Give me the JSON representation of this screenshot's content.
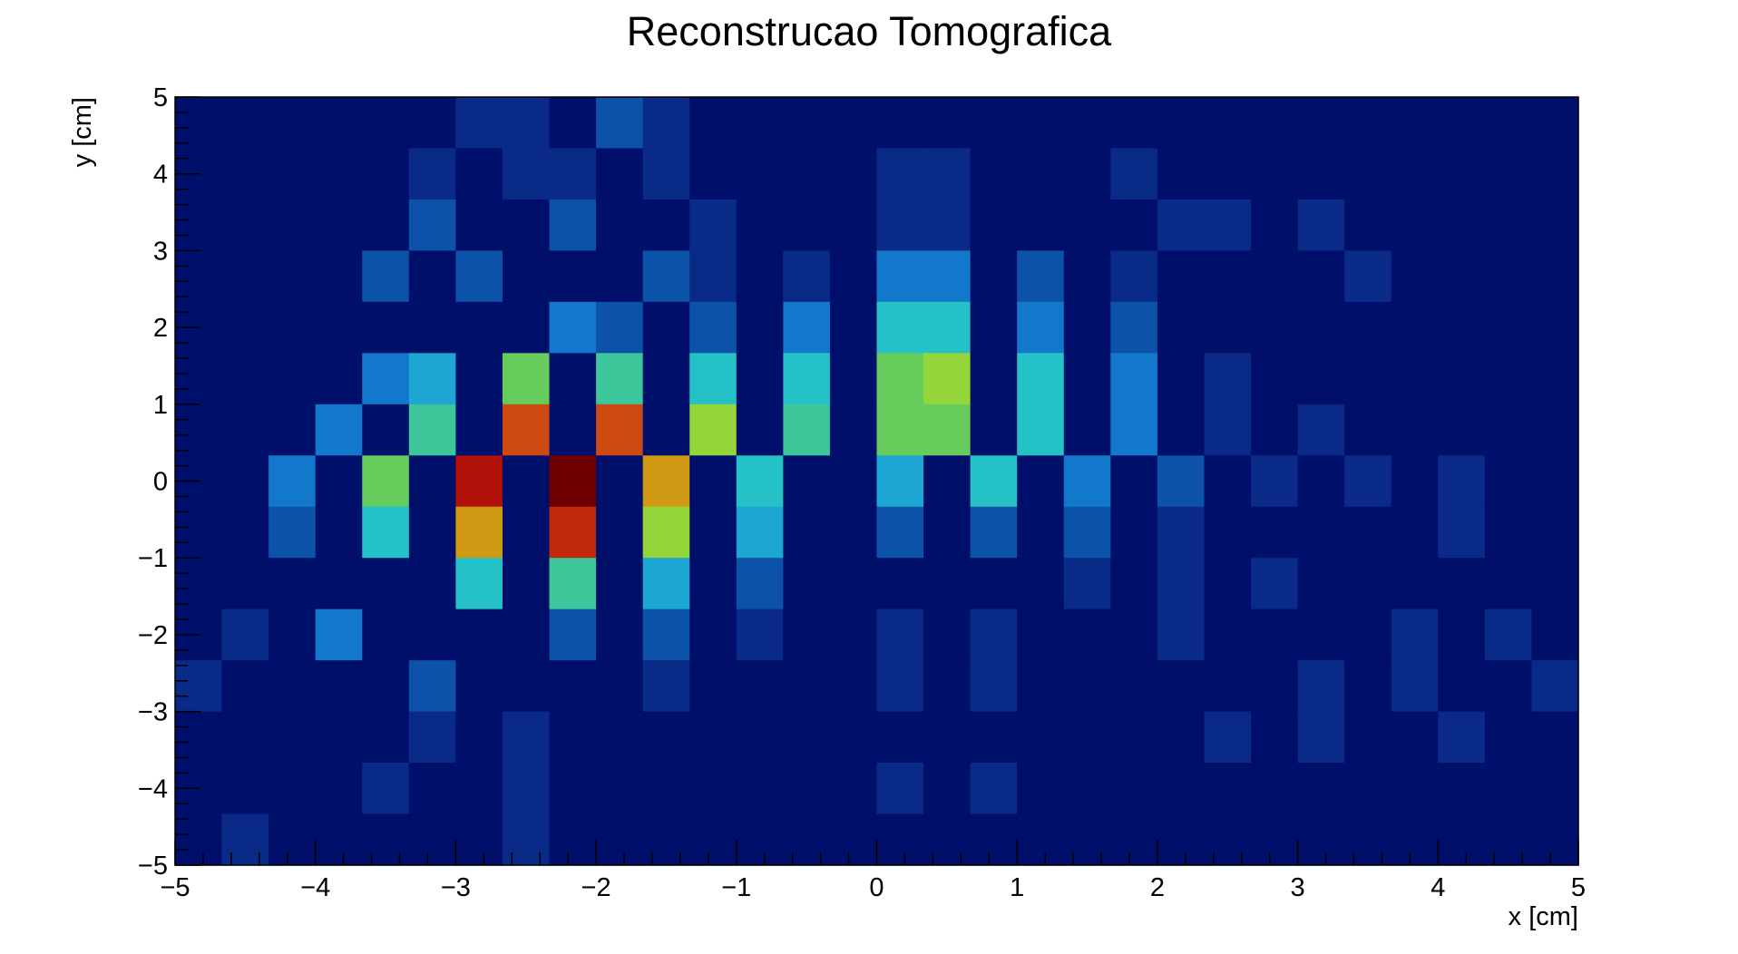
{
  "chart_data": {
    "type": "heatmap",
    "title": "Reconstrucao Tomografica",
    "xlabel": "x [cm]",
    "ylabel": "y [cm]",
    "xlim": [
      -5,
      5
    ],
    "ylim": [
      -5,
      5
    ],
    "x_ticks": [
      "−5",
      "−4",
      "−3",
      "−2",
      "−1",
      "0",
      "1",
      "2",
      "3",
      "4",
      "5"
    ],
    "y_ticks": [
      "−5",
      "−4",
      "−3",
      "−2",
      "−1",
      "0",
      "1",
      "2",
      "3",
      "4",
      "5"
    ],
    "x_bins": 30,
    "y_bins": 15,
    "grid": false,
    "legend": "none",
    "colormap": [
      "#000f6a",
      "#0a2a88",
      "#0c52a8",
      "#1278cc",
      "#1ea6d2",
      "#24c2c6",
      "#3cc69a",
      "#66cc5c",
      "#94d63a",
      "#d09a14",
      "#cc4a10",
      "#c02a0c",
      "#b01008",
      "#6e0000"
    ],
    "row_labels_top_to_bottom": [
      "y 4.33..5",
      "y 3.67..4.33",
      "y 3..3.67",
      "y 2.33..3",
      "y 1.67..2.33",
      "y 1..1.67",
      "y 0.33..1",
      "y -0.33..0.33",
      "y -1..-0.33",
      "y -1.67..-1",
      "y -2.33..-1.67",
      "y -3..-2.33",
      "y -3.67..-3",
      "y -4.33..-3.67",
      "y -5..-4.33"
    ],
    "values": [
      [
        0,
        0,
        0,
        0,
        0,
        0,
        1,
        1,
        0,
        2,
        1,
        0,
        0,
        0,
        0,
        0,
        0,
        0,
        0,
        0,
        0,
        0,
        0,
        0,
        0,
        0,
        0,
        0,
        0,
        0
      ],
      [
        0,
        0,
        0,
        0,
        0,
        1,
        0,
        1,
        1,
        0,
        1,
        0,
        0,
        0,
        0,
        1,
        1,
        0,
        0,
        0,
        1,
        0,
        0,
        0,
        0,
        0,
        0,
        0,
        0,
        0
      ],
      [
        0,
        0,
        0,
        0,
        0,
        2,
        0,
        0,
        2,
        0,
        0,
        1,
        0,
        0,
        0,
        1,
        1,
        0,
        0,
        0,
        0,
        1,
        1,
        0,
        1,
        0,
        0,
        0,
        0,
        0
      ],
      [
        0,
        0,
        0,
        0,
        2,
        0,
        2,
        0,
        0,
        0,
        2,
        1,
        0,
        1,
        0,
        3,
        3,
        0,
        2,
        0,
        1,
        0,
        0,
        0,
        0,
        1,
        0,
        0,
        0,
        0
      ],
      [
        0,
        0,
        0,
        0,
        0,
        0,
        0,
        0,
        3,
        2,
        0,
        2,
        0,
        3,
        0,
        5,
        5,
        0,
        3,
        0,
        2,
        0,
        0,
        0,
        0,
        0,
        0,
        0,
        0,
        0
      ],
      [
        0,
        0,
        0,
        0,
        3,
        4,
        0,
        7,
        0,
        6,
        0,
        5,
        0,
        5,
        0,
        7,
        8,
        0,
        5,
        0,
        3,
        0,
        1,
        0,
        0,
        0,
        0,
        0,
        0,
        0
      ],
      [
        0,
        0,
        0,
        3,
        0,
        6,
        0,
        10,
        0,
        10,
        0,
        8,
        0,
        6,
        0,
        7,
        7,
        0,
        5,
        0,
        3,
        0,
        1,
        0,
        1,
        0,
        0,
        0,
        0,
        0
      ],
      [
        0,
        0,
        3,
        0,
        7,
        0,
        12,
        0,
        13,
        0,
        9,
        0,
        5,
        0,
        0,
        4,
        0,
        5,
        0,
        3,
        0,
        2,
        0,
        1,
        0,
        1,
        0,
        1,
        0,
        0
      ],
      [
        0,
        0,
        2,
        0,
        5,
        0,
        9,
        0,
        11,
        0,
        8,
        0,
        4,
        0,
        0,
        2,
        0,
        2,
        0,
        2,
        0,
        1,
        0,
        0,
        0,
        0,
        0,
        1,
        0,
        0
      ],
      [
        0,
        0,
        0,
        0,
        0,
        0,
        5,
        0,
        6,
        0,
        4,
        0,
        2,
        0,
        0,
        0,
        0,
        0,
        0,
        1,
        0,
        1,
        0,
        1,
        0,
        0,
        0,
        0,
        0,
        0
      ],
      [
        0,
        1,
        0,
        3,
        0,
        0,
        0,
        0,
        2,
        0,
        2,
        0,
        1,
        0,
        0,
        1,
        0,
        1,
        0,
        0,
        0,
        1,
        0,
        0,
        0,
        0,
        1,
        0,
        1,
        0
      ],
      [
        1,
        0,
        0,
        0,
        0,
        2,
        0,
        0,
        0,
        0,
        1,
        0,
        0,
        0,
        0,
        1,
        0,
        1,
        0,
        0,
        0,
        0,
        0,
        0,
        1,
        0,
        1,
        0,
        0,
        1
      ],
      [
        0,
        0,
        0,
        0,
        0,
        1,
        0,
        1,
        0,
        0,
        0,
        0,
        0,
        0,
        0,
        0,
        0,
        0,
        0,
        0,
        0,
        0,
        1,
        0,
        1,
        0,
        0,
        1,
        0,
        0
      ],
      [
        0,
        0,
        0,
        0,
        1,
        0,
        0,
        1,
        0,
        0,
        0,
        0,
        0,
        0,
        0,
        1,
        0,
        1,
        0,
        0,
        0,
        0,
        0,
        0,
        0,
        0,
        0,
        0,
        0,
        0
      ],
      [
        0,
        1,
        0,
        0,
        0,
        0,
        0,
        1,
        0,
        0,
        0,
        0,
        0,
        0,
        0,
        0,
        0,
        0,
        0,
        0,
        0,
        0,
        0,
        0,
        0,
        0,
        0,
        0,
        0,
        0
      ]
    ]
  }
}
